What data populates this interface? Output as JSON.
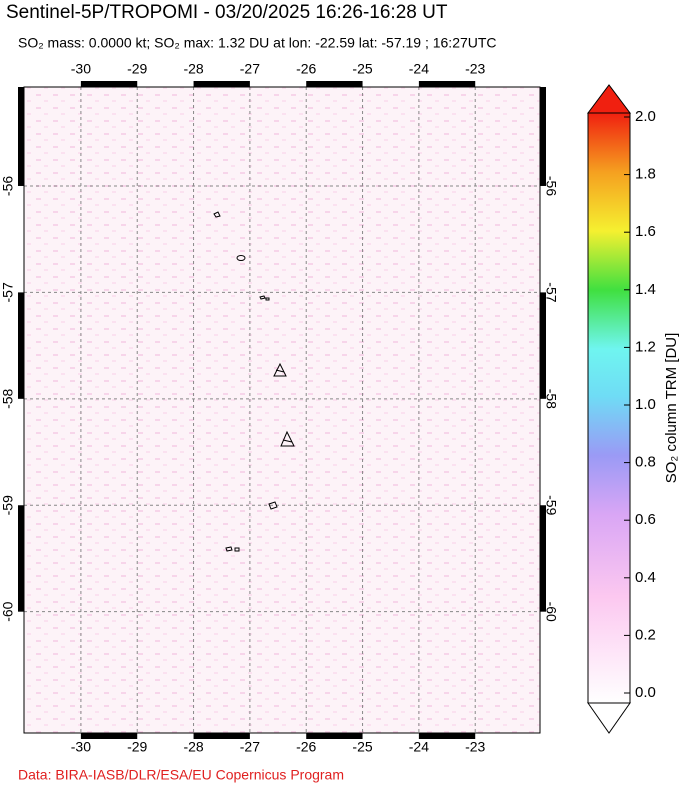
{
  "title": "Sentinel-5P/TROPOMI - 03/20/2025 16:26-16:28 UT",
  "subtitle": "SO₂ mass: 0.0000 kt; SO₂ max: 1.32 DU at lon: -22.59 lat: -57.19 ; 16:27UTC",
  "credit": "Data: BIRA-IASB/DLR/ESA/EU Copernicus Program",
  "map": {
    "xlim": [
      -31.01,
      -21.85
    ],
    "ylim": [
      -61.14,
      -55.07
    ],
    "xticks": [
      -30,
      -29,
      -28,
      -27,
      -26,
      -25,
      -24,
      -23
    ],
    "yticks": [
      -56,
      -57,
      -58,
      -59,
      -60
    ]
  },
  "colorbar": {
    "label": "SO₂ column TRM [DU]",
    "lim": [
      0,
      2
    ],
    "ticks": [
      {
        "value": 0,
        "label": "0.0"
      },
      {
        "value": 0.2,
        "label": "0.2"
      },
      {
        "value": 0.4,
        "label": "0.4"
      },
      {
        "value": 0.6,
        "label": "0.6"
      },
      {
        "value": 0.8,
        "label": "0.8"
      },
      {
        "value": 1,
        "label": "1.0"
      },
      {
        "value": 1.2,
        "label": "1.2"
      },
      {
        "value": 1.4,
        "label": "1.4"
      },
      {
        "value": 1.6,
        "label": "1.6"
      },
      {
        "value": 1.8,
        "label": "1.8"
      },
      {
        "value": 2,
        "label": "2.0"
      }
    ]
  }
}
